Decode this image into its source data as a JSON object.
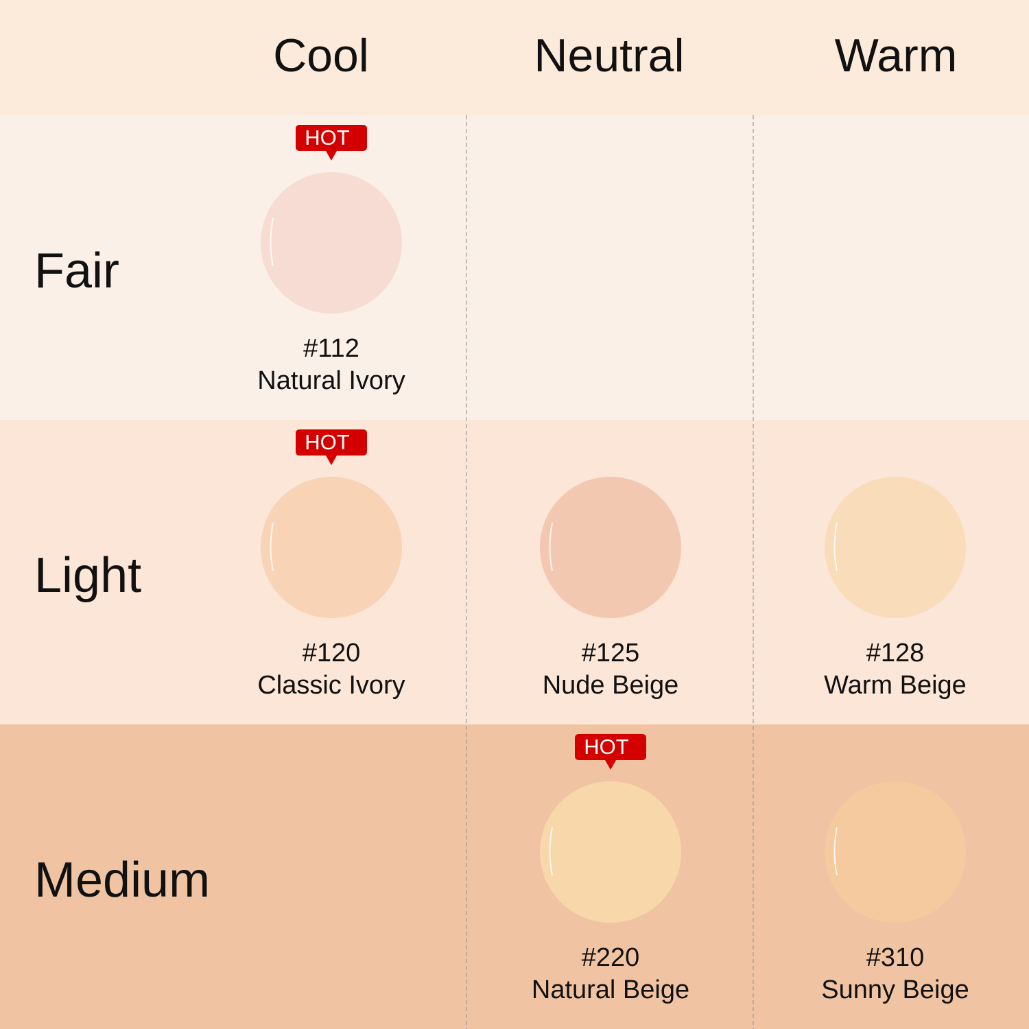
{
  "header": {
    "columns": [
      "Cool",
      "Neutral",
      "Warm"
    ]
  },
  "rows": [
    {
      "label": "Fair",
      "background": "#fbf0e7",
      "cells": [
        {
          "badge": "HOT",
          "code": "#112",
          "name": "Natural Ivory",
          "color": "#f6dcd2"
        },
        null,
        null
      ]
    },
    {
      "label": "Light",
      "background": "#fce6d7",
      "cells": [
        {
          "badge": "HOT",
          "code": "#120",
          "name": "Classic Ivory",
          "color": "#f8d3b5"
        },
        {
          "code": "#125",
          "name": "Nude Beige",
          "color": "#f3c8b1"
        },
        {
          "code": "#128",
          "name": "Warm Beige",
          "color": "#f9ddba"
        }
      ]
    },
    {
      "label": "Medium",
      "background": "#f0c4a3",
      "cells": [
        null,
        {
          "badge": "HOT",
          "code": "#220",
          "name": "Natural Beige",
          "color": "#f8d7aa"
        },
        {
          "code": "#310",
          "name": "Sunny Beige",
          "color": "#f5ca9f"
        }
      ]
    }
  ]
}
